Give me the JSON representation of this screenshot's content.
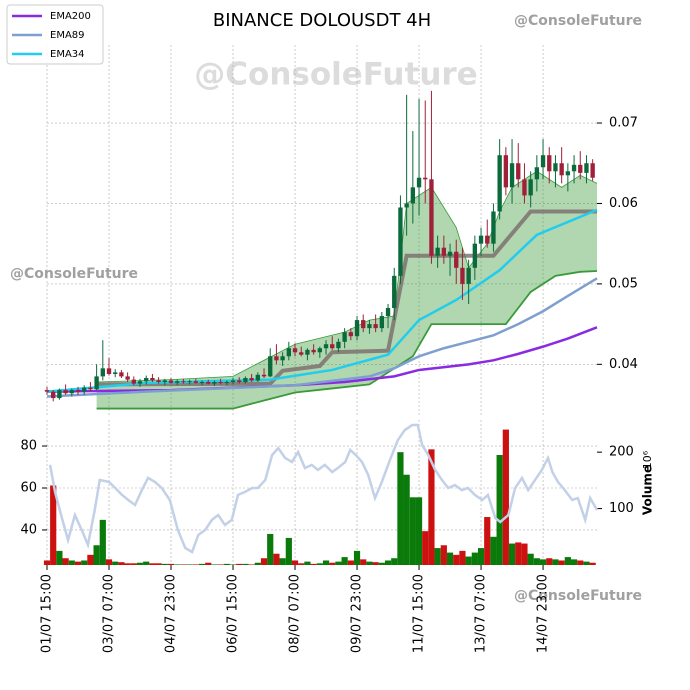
{
  "chart_data": {
    "type": "candlestick",
    "title": "BINANCE DOLOUSDT 4H",
    "watermarks": [
      "@ConsoleFuture",
      "@ConsoleFuture",
      "@ConsoleFuture",
      "@ConsoleFuture"
    ],
    "xlim": [
      0,
      88.7
    ],
    "xticks": [
      {
        "value": 0,
        "label": "01/07 15:00"
      },
      {
        "value": 10,
        "label": "03/07 07:00"
      },
      {
        "value": 20,
        "label": "04/07 23:00"
      },
      {
        "value": 30,
        "label": "06/07 15:00"
      },
      {
        "value": 40,
        "label": "08/07 07:00"
      },
      {
        "value": 50,
        "label": "09/07 23:00"
      },
      {
        "value": 60,
        "label": "11/07 15:00"
      },
      {
        "value": 70,
        "label": "13/07 07:00"
      },
      {
        "value": 80,
        "label": "14/07 23:00"
      }
    ],
    "ylim": [
      0.0337,
      0.0797
    ],
    "yticks": [
      0.04,
      0.05,
      0.06,
      0.07
    ],
    "grid": true,
    "legend": "upper left",
    "candles": {
      "up_color": "#0b6a3c",
      "down_color": "#a0203a",
      "ohlc": [
        [
          0.0368,
          0.0372,
          0.0362,
          0.0366
        ],
        [
          0.0366,
          0.0368,
          0.0354,
          0.0358
        ],
        [
          0.0358,
          0.037,
          0.0356,
          0.0368
        ],
        [
          0.0368,
          0.0375,
          0.0362,
          0.0364
        ],
        [
          0.0364,
          0.037,
          0.036,
          0.0368
        ],
        [
          0.0368,
          0.0372,
          0.0362,
          0.0366
        ],
        [
          0.0366,
          0.0374,
          0.0362,
          0.0371
        ],
        [
          0.0371,
          0.0378,
          0.0366,
          0.0369
        ],
        [
          0.0369,
          0.04,
          0.0368,
          0.0385
        ],
        [
          0.0385,
          0.043,
          0.038,
          0.0395
        ],
        [
          0.0395,
          0.0408,
          0.0386,
          0.0388
        ],
        [
          0.0388,
          0.0394,
          0.0384,
          0.039
        ],
        [
          0.039,
          0.0393,
          0.0383,
          0.0385
        ],
        [
          0.0385,
          0.039,
          0.0378,
          0.0381
        ],
        [
          0.0381,
          0.0385,
          0.0374,
          0.0376
        ],
        [
          0.0376,
          0.0382,
          0.0372,
          0.0379
        ],
        [
          0.0379,
          0.0386,
          0.0375,
          0.0383
        ],
        [
          0.0383,
          0.0388,
          0.0378,
          0.038
        ],
        [
          0.038,
          0.0384,
          0.0376,
          0.0378
        ],
        [
          0.0378,
          0.0382,
          0.0374,
          0.038
        ],
        [
          0.038,
          0.0383,
          0.0376,
          0.0377
        ],
        [
          0.0377,
          0.0381,
          0.0374,
          0.0379
        ],
        [
          0.0379,
          0.0382,
          0.0376,
          0.0378
        ],
        [
          0.0378,
          0.0381,
          0.0375,
          0.0379
        ],
        [
          0.0379,
          0.0382,
          0.0376,
          0.0377
        ],
        [
          0.0377,
          0.038,
          0.0374,
          0.0378
        ],
        [
          0.0378,
          0.0381,
          0.0375,
          0.0376
        ],
        [
          0.0376,
          0.038,
          0.0373,
          0.0378
        ],
        [
          0.0378,
          0.0382,
          0.0375,
          0.0377
        ],
        [
          0.0377,
          0.038,
          0.0374,
          0.0378
        ],
        [
          0.0378,
          0.0383,
          0.0375,
          0.038
        ],
        [
          0.038,
          0.0384,
          0.0376,
          0.0378
        ],
        [
          0.0378,
          0.0385,
          0.0376,
          0.0383
        ],
        [
          0.0383,
          0.0388,
          0.0378,
          0.038
        ],
        [
          0.038,
          0.039,
          0.0378,
          0.0387
        ],
        [
          0.0387,
          0.0395,
          0.0383,
          0.0385
        ],
        [
          0.0385,
          0.042,
          0.0384,
          0.041
        ],
        [
          0.041,
          0.0425,
          0.04,
          0.0405
        ],
        [
          0.0405,
          0.0415,
          0.0398,
          0.041
        ],
        [
          0.041,
          0.0428,
          0.0405,
          0.042
        ],
        [
          0.042,
          0.0426,
          0.041,
          0.0415
        ],
        [
          0.0415,
          0.0422,
          0.041,
          0.0412
        ],
        [
          0.0412,
          0.042,
          0.0405,
          0.0418
        ],
        [
          0.0418,
          0.0425,
          0.0412,
          0.0415
        ],
        [
          0.0415,
          0.0422,
          0.0408,
          0.042
        ],
        [
          0.042,
          0.043,
          0.0412,
          0.0425
        ],
        [
          0.0425,
          0.0435,
          0.0418,
          0.042
        ],
        [
          0.042,
          0.0432,
          0.0415,
          0.0428
        ],
        [
          0.0428,
          0.0445,
          0.042,
          0.044
        ],
        [
          0.044,
          0.0445,
          0.043,
          0.0435
        ],
        [
          0.0435,
          0.046,
          0.043,
          0.0455
        ],
        [
          0.0455,
          0.0462,
          0.044,
          0.0445
        ],
        [
          0.0445,
          0.0455,
          0.0438,
          0.045
        ],
        [
          0.045,
          0.0462,
          0.044,
          0.0445
        ],
        [
          0.0445,
          0.0465,
          0.044,
          0.046
        ],
        [
          0.046,
          0.0475,
          0.0445,
          0.047
        ],
        [
          0.047,
          0.052,
          0.0455,
          0.051
        ],
        [
          0.051,
          0.061,
          0.05,
          0.0595
        ],
        [
          0.0595,
          0.0735,
          0.056,
          0.06
        ],
        [
          0.06,
          0.069,
          0.0575,
          0.062
        ],
        [
          0.062,
          0.073,
          0.0585,
          0.0632
        ],
        [
          0.0632,
          0.0728,
          0.06,
          0.063
        ],
        [
          0.063,
          0.074,
          0.0525,
          0.0535
        ],
        [
          0.0535,
          0.056,
          0.052,
          0.0545
        ],
        [
          0.0545,
          0.056,
          0.0525,
          0.0535
        ],
        [
          0.0535,
          0.055,
          0.051,
          0.054
        ],
        [
          0.054,
          0.0555,
          0.05,
          0.052
        ],
        [
          0.052,
          0.0545,
          0.048,
          0.05
        ],
        [
          0.05,
          0.053,
          0.0475,
          0.052
        ],
        [
          0.052,
          0.056,
          0.0505,
          0.055
        ],
        [
          0.055,
          0.057,
          0.0535,
          0.056
        ],
        [
          0.056,
          0.058,
          0.0545,
          0.055
        ],
        [
          0.055,
          0.06,
          0.054,
          0.059
        ],
        [
          0.059,
          0.068,
          0.058,
          0.066
        ],
        [
          0.066,
          0.067,
          0.061,
          0.062
        ],
        [
          0.062,
          0.068,
          0.06,
          0.065
        ],
        [
          0.065,
          0.0675,
          0.062,
          0.063
        ],
        [
          0.063,
          0.065,
          0.06,
          0.061
        ],
        [
          0.061,
          0.064,
          0.0595,
          0.063
        ],
        [
          0.063,
          0.066,
          0.0615,
          0.0645
        ],
        [
          0.0645,
          0.068,
          0.063,
          0.066
        ],
        [
          0.066,
          0.067,
          0.0625,
          0.064
        ],
        [
          0.064,
          0.066,
          0.062,
          0.065
        ],
        [
          0.065,
          0.067,
          0.0625,
          0.0635
        ],
        [
          0.0635,
          0.065,
          0.0615,
          0.064
        ],
        [
          0.064,
          0.066,
          0.0625,
          0.0648
        ],
        [
          0.0648,
          0.0665,
          0.063,
          0.0638
        ],
        [
          0.0638,
          0.066,
          0.0625,
          0.065
        ],
        [
          0.065,
          0.0655,
          0.0628,
          0.0632
        ]
      ]
    },
    "cloud": {
      "color": "#3a9a3a",
      "upper": {
        "x": [
          8,
          20,
          30,
          40,
          48,
          52,
          56,
          58,
          62,
          66,
          68,
          71,
          73,
          75,
          79,
          83,
          86,
          88.7
        ],
        "values": [
          0.0378,
          0.0381,
          0.0385,
          0.0425,
          0.044,
          0.0455,
          0.046,
          0.06,
          0.062,
          0.057,
          0.052,
          0.055,
          0.059,
          0.062,
          0.064,
          0.062,
          0.0635,
          0.0625
        ]
      },
      "lower": {
        "x": [
          8,
          20,
          30,
          35,
          40,
          46,
          52,
          56,
          59,
          62,
          70,
          74,
          78,
          82,
          86,
          88.7
        ],
        "values": [
          0.0345,
          0.0345,
          0.0345,
          0.0355,
          0.0365,
          0.037,
          0.0375,
          0.0395,
          0.041,
          0.045,
          0.045,
          0.045,
          0.049,
          0.051,
          0.0515,
          0.0516
        ]
      }
    },
    "trend": {
      "color": "#7a6a6a",
      "x": [
        8,
        36,
        38,
        44,
        46,
        55,
        58,
        72,
        78,
        88.7
      ],
      "values": [
        0.0375,
        0.0376,
        0.0392,
        0.0398,
        0.0415,
        0.0417,
        0.0535,
        0.0535,
        0.059,
        0.059
      ]
    },
    "series": [
      {
        "name": "EMA200",
        "color": "#8a2be2",
        "x": [
          0,
          20,
          40,
          48,
          56,
          60,
          68,
          72,
          76,
          80,
          84,
          88.7
        ],
        "values": [
          0.0366,
          0.0368,
          0.0374,
          0.0378,
          0.0385,
          0.0393,
          0.04,
          0.0405,
          0.0413,
          0.0422,
          0.0432,
          0.0446
        ]
      },
      {
        "name": "EMA89",
        "color": "#7f9fd0",
        "x": [
          0,
          16,
          40,
          52,
          56,
          60,
          64,
          68,
          72,
          76,
          80,
          84,
          88.7
        ],
        "values": [
          0.036,
          0.0366,
          0.0374,
          0.0385,
          0.0395,
          0.041,
          0.042,
          0.0428,
          0.0436,
          0.045,
          0.0466,
          0.0485,
          0.0507
        ]
      },
      {
        "name": "EMA34",
        "color": "#22ccee",
        "x": [
          0,
          16,
          36,
          46,
          55,
          60,
          66,
          73,
          79,
          88.7
        ],
        "values": [
          0.0366,
          0.0377,
          0.0381,
          0.0393,
          0.0412,
          0.0455,
          0.048,
          0.0517,
          0.0561,
          0.0592
        ]
      }
    ],
    "lower_panel": {
      "ylim": [
        23.3,
        92.4
      ],
      "yticks": [
        40,
        60,
        80
      ],
      "y2lim": [
        0,
        257
      ],
      "y2ticks": [
        100,
        200
      ],
      "y2label": "Volume",
      "y2unit": "10⁶",
      "line": {
        "color": "#c2d0e8",
        "x": [
          0.5,
          1.3,
          2.4,
          3.4,
          4.5,
          5.6,
          6.6,
          7.7,
          8.5,
          10,
          11,
          12.1,
          13.1,
          14.2,
          15.3,
          16.3,
          17.4,
          18.5,
          19.8,
          21.1,
          22.3,
          23.4,
          24.4,
          25.5,
          26.6,
          27.6,
          28.7,
          29.8,
          30.8,
          31.9,
          33.1,
          34,
          35.2,
          36.3,
          37.3,
          38.4,
          39.5,
          40.5,
          41.6,
          42.7,
          43.7,
          44.8,
          46,
          46.9,
          48.1,
          48.9,
          49.8,
          50.8,
          51.8,
          52.9,
          54,
          55.3,
          56.6,
          57.7,
          58.9,
          59.8,
          60.5,
          61.5,
          62.6,
          63.7,
          64.7,
          65.8,
          66.9,
          67.9,
          69,
          70.2,
          71.1,
          72.3,
          73.1,
          74.4,
          75.5,
          76.6,
          77.6,
          78.7,
          79.8,
          80.8,
          81.5,
          82.4,
          83.5,
          84.7,
          85.6,
          86.8,
          87.6,
          88.7
        ],
        "values": [
          71,
          58.1,
          45.7,
          35.2,
          47.1,
          40,
          32.9,
          49.5,
          63.8,
          62.9,
          60,
          56.7,
          54.3,
          51.9,
          59,
          64.8,
          62.9,
          60,
          54.3,
          40,
          31.4,
          29.5,
          37.6,
          40,
          44.8,
          47.1,
          42.4,
          44.8,
          56.7,
          58.1,
          60,
          60,
          63.8,
          75.7,
          79,
          74.3,
          72.4,
          77.1,
          69.5,
          71,
          68.6,
          71,
          67.6,
          69.5,
          72.4,
          78.1,
          75.7,
          72.4,
          66.2,
          55.2,
          62.9,
          73.3,
          82.9,
          87.6,
          90,
          90,
          80.5,
          75.7,
          68.6,
          63.8,
          60,
          61.4,
          59,
          60,
          56.7,
          54.3,
          56.7,
          45.7,
          43.8,
          47.1,
          60,
          64.8,
          59,
          63.8,
          68.6,
          74.3,
          67.6,
          62.9,
          59,
          54.3,
          55.2,
          44.8,
          55.2,
          49.5
        ]
      },
      "volume": {
        "up_color": "#0a7a0a",
        "down_color": "#cc1111",
        "values": [
          8,
          141,
          25,
          12,
          8,
          6,
          8,
          18,
          35,
          80,
          10,
          6,
          5,
          3,
          3,
          4,
          6,
          3,
          3,
          2,
          2,
          1,
          1,
          1,
          1,
          2,
          4,
          1,
          1,
          2,
          1,
          2,
          2,
          1,
          4,
          12,
          55,
          20,
          12,
          48,
          8,
          3,
          6,
          2,
          3,
          8,
          4,
          6,
          14,
          8,
          25,
          10,
          6,
          5,
          4,
          8,
          12,
          200,
          160,
          120,
          120,
          60,
          205,
          30,
          35,
          22,
          18,
          25,
          15,
          22,
          30,
          85,
          50,
          195,
          240,
          38,
          40,
          38,
          20,
          12,
          10,
          12,
          10,
          8,
          14,
          10,
          8,
          6,
          4
        ]
      }
    }
  }
}
